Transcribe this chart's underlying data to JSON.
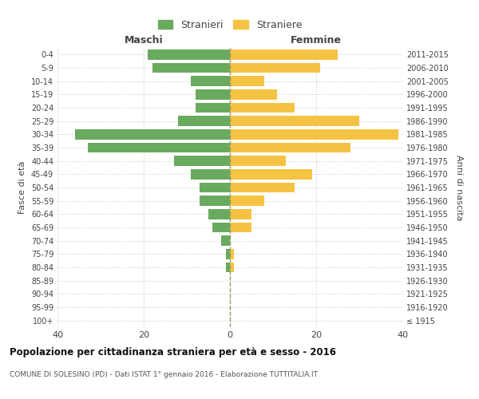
{
  "age_groups": [
    "100+",
    "95-99",
    "90-94",
    "85-89",
    "80-84",
    "75-79",
    "70-74",
    "65-69",
    "60-64",
    "55-59",
    "50-54",
    "45-49",
    "40-44",
    "35-39",
    "30-34",
    "25-29",
    "20-24",
    "15-19",
    "10-14",
    "5-9",
    "0-4"
  ],
  "birth_years": [
    "≤ 1915",
    "1916-1920",
    "1921-1925",
    "1926-1930",
    "1931-1935",
    "1936-1940",
    "1941-1945",
    "1946-1950",
    "1951-1955",
    "1956-1960",
    "1961-1965",
    "1966-1970",
    "1971-1975",
    "1976-1980",
    "1981-1985",
    "1986-1990",
    "1991-1995",
    "1996-2000",
    "2001-2005",
    "2006-2010",
    "2011-2015"
  ],
  "males": [
    0,
    0,
    0,
    0,
    1,
    1,
    2,
    4,
    5,
    7,
    7,
    9,
    13,
    33,
    36,
    12,
    8,
    8,
    9,
    18,
    19
  ],
  "females": [
    0,
    0,
    0,
    0,
    1,
    1,
    0,
    5,
    5,
    8,
    15,
    19,
    13,
    28,
    39,
    30,
    15,
    11,
    8,
    21,
    25
  ],
  "male_color": "#6aaa5e",
  "female_color": "#f5c343",
  "background_color": "#ffffff",
  "grid_color": "#cccccc",
  "center_line_color": "#999966",
  "xlim": 40,
  "title": "Popolazione per cittadinanza straniera per età e sesso - 2016",
  "subtitle": "COMUNE DI SOLESINO (PD) - Dati ISTAT 1° gennaio 2016 - Elaborazione TUTTITALIA.IT",
  "xlabel_left": "Maschi",
  "xlabel_right": "Femmine",
  "ylabel_left": "Fasce di età",
  "ylabel_right": "Anni di nascita",
  "legend_stranieri": "Stranieri",
  "legend_straniere": "Straniere"
}
